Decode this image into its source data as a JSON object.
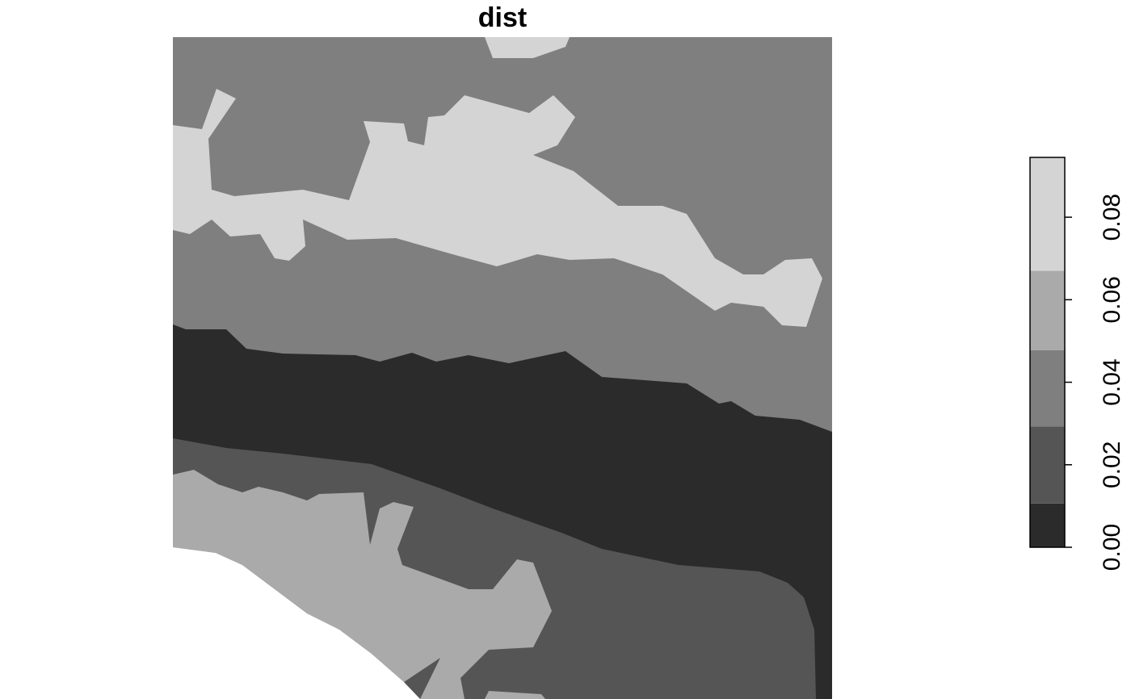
{
  "chart_data": {
    "type": "raster",
    "title": "dist",
    "legend": {
      "breaks": [
        0,
        0.0106,
        0.0293,
        0.0478,
        0.067,
        0.0945
      ],
      "colors": [
        "#2b2b2b",
        "#555555",
        "#7f7f7f",
        "#aaaaaa",
        "#d4d4d4"
      ]
    },
    "ylim": [
      0,
      0.0945
    ],
    "yticks": [
      {
        "value": 0,
        "label": "0.00"
      },
      {
        "value": 0.02,
        "label": "0.02"
      },
      {
        "value": 0.04,
        "label": "0.04"
      },
      {
        "value": 0.06,
        "label": "0.06"
      },
      {
        "value": 0.08,
        "label": "0.08"
      }
    ]
  }
}
